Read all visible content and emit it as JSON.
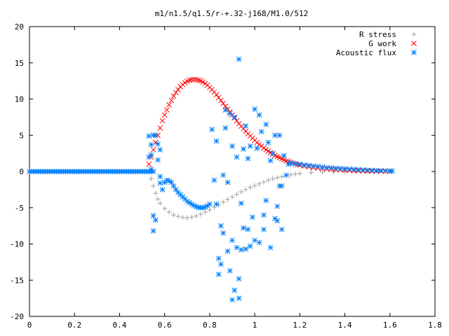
{
  "chart_data": {
    "type": "scatter",
    "title": "m1/n1.5/q1.5/r-+.32-j168/M1.0/512",
    "xlabel": "",
    "ylabel": "",
    "xlim": [
      0,
      1.8
    ],
    "ylim": [
      -20,
      20
    ],
    "x_ticks": [
      0,
      0.2,
      0.4,
      0.6,
      0.8,
      1,
      1.2,
      1.4,
      1.6,
      1.8
    ],
    "x_tick_labels": [
      "0",
      "0.2",
      "0.4",
      "0.6",
      "0.8",
      "1",
      "1.2",
      "1.4",
      "1.6",
      "1.8"
    ],
    "y_ticks": [
      -20,
      -15,
      -10,
      -5,
      0,
      5,
      10,
      15,
      20
    ],
    "y_tick_labels": [
      "-20",
      "-15",
      "-10",
      "-5",
      "0",
      "5",
      "10",
      "15",
      "20"
    ],
    "grid": false,
    "legend_position": "top-right",
    "series": [
      {
        "name": "R stress",
        "marker": "plus",
        "color": "#a0a0a0",
        "points": [
          [
            0.53,
            0
          ],
          [
            0.54,
            -1.0
          ],
          [
            0.55,
            -2.0
          ],
          [
            0.56,
            -3.0
          ],
          [
            0.57,
            -3.8
          ],
          [
            0.58,
            -4.4
          ],
          [
            0.6,
            -5.1
          ],
          [
            0.62,
            -5.6
          ],
          [
            0.64,
            -6.0
          ],
          [
            0.66,
            -6.2
          ],
          [
            0.68,
            -6.35
          ],
          [
            0.7,
            -6.4
          ],
          [
            0.72,
            -6.3
          ],
          [
            0.74,
            -6.15
          ],
          [
            0.76,
            -5.9
          ],
          [
            0.78,
            -5.6
          ],
          [
            0.8,
            -5.3
          ],
          [
            0.82,
            -4.95
          ],
          [
            0.84,
            -4.6
          ],
          [
            0.86,
            -4.2
          ],
          [
            0.88,
            -3.85
          ],
          [
            0.9,
            -3.5
          ],
          [
            0.92,
            -3.15
          ],
          [
            0.94,
            -2.8
          ],
          [
            0.96,
            -2.5
          ],
          [
            0.98,
            -2.2
          ],
          [
            1.0,
            -1.95
          ],
          [
            1.02,
            -1.7
          ],
          [
            1.04,
            -1.45
          ],
          [
            1.06,
            -1.2
          ],
          [
            1.08,
            -1.0
          ],
          [
            1.1,
            -0.85
          ],
          [
            1.12,
            -0.7
          ],
          [
            1.14,
            -0.55
          ],
          [
            1.16,
            -0.45
          ],
          [
            1.18,
            -0.35
          ],
          [
            1.2,
            -0.28
          ],
          [
            1.25,
            -0.15
          ],
          [
            1.3,
            -0.08
          ],
          [
            1.35,
            -0.04
          ],
          [
            1.4,
            -0.02
          ],
          [
            1.45,
            -0.01
          ],
          [
            1.5,
            0
          ],
          [
            1.55,
            0
          ],
          [
            1.6,
            0
          ]
        ]
      },
      {
        "name": "G work",
        "marker": "cross",
        "color": "#ff0000",
        "points": [
          [
            0.53,
            1.0
          ],
          [
            0.54,
            2.0
          ],
          [
            0.55,
            3.0
          ],
          [
            0.56,
            4.0
          ],
          [
            0.57,
            5.0
          ],
          [
            0.58,
            6.0
          ],
          [
            0.59,
            7.0
          ],
          [
            0.6,
            7.8
          ],
          [
            0.61,
            8.5
          ],
          [
            0.62,
            9.2
          ],
          [
            0.63,
            9.8
          ],
          [
            0.64,
            10.4
          ],
          [
            0.65,
            10.9
          ],
          [
            0.66,
            11.3
          ],
          [
            0.67,
            11.7
          ],
          [
            0.68,
            12.0
          ],
          [
            0.69,
            12.25
          ],
          [
            0.7,
            12.45
          ],
          [
            0.71,
            12.6
          ],
          [
            0.72,
            12.68
          ],
          [
            0.73,
            12.7
          ],
          [
            0.74,
            12.68
          ],
          [
            0.75,
            12.6
          ],
          [
            0.76,
            12.5
          ],
          [
            0.77,
            12.35
          ],
          [
            0.78,
            12.15
          ],
          [
            0.79,
            11.9
          ],
          [
            0.8,
            11.6
          ],
          [
            0.81,
            11.3
          ],
          [
            0.82,
            10.95
          ],
          [
            0.83,
            10.6
          ],
          [
            0.84,
            10.2
          ],
          [
            0.85,
            9.8
          ],
          [
            0.86,
            9.4
          ],
          [
            0.87,
            9.0
          ],
          [
            0.88,
            8.6
          ],
          [
            0.89,
            8.2
          ],
          [
            0.9,
            7.8
          ],
          [
            0.91,
            7.4
          ],
          [
            0.92,
            7.0
          ],
          [
            0.93,
            6.6
          ],
          [
            0.94,
            6.25
          ],
          [
            0.95,
            5.9
          ],
          [
            0.96,
            5.55
          ],
          [
            0.97,
            5.2
          ],
          [
            0.98,
            4.9
          ],
          [
            0.99,
            4.6
          ],
          [
            1.0,
            4.3
          ],
          [
            1.01,
            4.0
          ],
          [
            1.02,
            3.75
          ],
          [
            1.03,
            3.5
          ],
          [
            1.04,
            3.25
          ],
          [
            1.05,
            3.0
          ],
          [
            1.06,
            2.8
          ],
          [
            1.07,
            2.6
          ],
          [
            1.08,
            2.4
          ],
          [
            1.09,
            2.2
          ],
          [
            1.1,
            2.05
          ],
          [
            1.11,
            1.9
          ],
          [
            1.12,
            1.75
          ],
          [
            1.13,
            1.6
          ],
          [
            1.14,
            1.45
          ],
          [
            1.15,
            1.35
          ],
          [
            1.16,
            1.25
          ],
          [
            1.17,
            1.15
          ],
          [
            1.18,
            1.05
          ],
          [
            1.19,
            0.95
          ],
          [
            1.2,
            0.88
          ],
          [
            1.22,
            0.75
          ],
          [
            1.24,
            0.65
          ],
          [
            1.26,
            0.55
          ],
          [
            1.28,
            0.47
          ],
          [
            1.3,
            0.4
          ],
          [
            1.32,
            0.34
          ],
          [
            1.34,
            0.29
          ],
          [
            1.36,
            0.25
          ],
          [
            1.38,
            0.21
          ],
          [
            1.4,
            0.18
          ],
          [
            1.42,
            0.15
          ],
          [
            1.44,
            0.12
          ],
          [
            1.46,
            0.1
          ],
          [
            1.48,
            0.08
          ],
          [
            1.5,
            0.06
          ],
          [
            1.52,
            0.05
          ],
          [
            1.54,
            0.04
          ],
          [
            1.56,
            0.03
          ],
          [
            1.58,
            0.02
          ],
          [
            1.6,
            0.01
          ]
        ]
      },
      {
        "name": "Acoustic flux",
        "marker": "star",
        "color": "#0080ff",
        "points": [
          [
            0.0,
            0
          ],
          [
            0.04,
            0
          ],
          [
            0.08,
            0
          ],
          [
            0.12,
            0
          ],
          [
            0.16,
            0
          ],
          [
            0.2,
            0
          ],
          [
            0.24,
            0
          ],
          [
            0.28,
            0
          ],
          [
            0.32,
            0
          ],
          [
            0.36,
            0
          ],
          [
            0.4,
            0
          ],
          [
            0.44,
            0
          ],
          [
            0.48,
            0
          ],
          [
            0.52,
            0
          ],
          [
            0.53,
            2.0
          ],
          [
            0.53,
            4.9
          ],
          [
            0.54,
            3.7
          ],
          [
            0.54,
            2.3
          ],
          [
            0.54,
            0.3
          ],
          [
            0.55,
            5.0
          ],
          [
            0.55,
            -6.1
          ],
          [
            0.55,
            -8.2
          ],
          [
            0.56,
            -6.7
          ],
          [
            0.56,
            5.0
          ],
          [
            0.57,
            3.8
          ],
          [
            0.57,
            1.6
          ],
          [
            0.58,
            3.0
          ],
          [
            0.58,
            -0.7
          ],
          [
            0.58,
            -1.6
          ],
          [
            0.59,
            -2.5
          ],
          [
            0.6,
            -1.5
          ],
          [
            0.61,
            -1.2
          ],
          [
            0.62,
            -1.3
          ],
          [
            0.63,
            -1.5
          ],
          [
            0.64,
            -2.0
          ],
          [
            0.65,
            -2.5
          ],
          [
            0.66,
            -2.9
          ],
          [
            0.67,
            -3.2
          ],
          [
            0.68,
            -3.5
          ],
          [
            0.69,
            -3.8
          ],
          [
            0.7,
            -4.1
          ],
          [
            0.71,
            -4.3
          ],
          [
            0.72,
            -4.5
          ],
          [
            0.73,
            -4.7
          ],
          [
            0.74,
            -4.85
          ],
          [
            0.75,
            -4.95
          ],
          [
            0.76,
            -5.0
          ],
          [
            0.77,
            -5.0
          ],
          [
            0.78,
            -4.9
          ],
          [
            0.79,
            -4.75
          ],
          [
            0.8,
            -4.5
          ],
          [
            0.81,
            5.8
          ],
          [
            0.82,
            -1.2
          ],
          [
            0.83,
            -4.5
          ],
          [
            0.83,
            4.2
          ],
          [
            0.84,
            -12.0
          ],
          [
            0.84,
            -14.2
          ],
          [
            0.85,
            -7.5
          ],
          [
            0.85,
            -12.8
          ],
          [
            0.86,
            -8.5
          ],
          [
            0.86,
            -0.5
          ],
          [
            0.87,
            8.5
          ],
          [
            0.87,
            6.0
          ],
          [
            0.88,
            -11.0
          ],
          [
            0.88,
            -1.5
          ],
          [
            0.89,
            -13.7
          ],
          [
            0.89,
            8.0
          ],
          [
            0.9,
            -9.5
          ],
          [
            0.9,
            -17.7
          ],
          [
            0.9,
            3.5
          ],
          [
            0.91,
            -16.4
          ],
          [
            0.91,
            7.5
          ],
          [
            0.92,
            -10.5
          ],
          [
            0.92,
            2.0
          ],
          [
            0.93,
            15.5
          ],
          [
            0.93,
            -17.5
          ],
          [
            0.93,
            -14.8
          ],
          [
            0.94,
            -10.8
          ],
          [
            0.94,
            -4.4
          ],
          [
            0.95,
            -7.8
          ],
          [
            0.95,
            3.1
          ],
          [
            0.96,
            -10.7
          ],
          [
            0.96,
            6.3
          ],
          [
            0.97,
            1.8
          ],
          [
            0.97,
            -8.0
          ],
          [
            0.98,
            -10.3
          ],
          [
            0.98,
            3.5
          ],
          [
            0.99,
            -6.3
          ],
          [
            1.0,
            8.6
          ],
          [
            1.0,
            -9.5
          ],
          [
            1.01,
            3.2
          ],
          [
            1.02,
            7.8
          ],
          [
            1.02,
            -9.8
          ],
          [
            1.03,
            5.5
          ],
          [
            1.04,
            -8.0
          ],
          [
            1.04,
            -6.0
          ],
          [
            1.05,
            -4.0
          ],
          [
            1.05,
            6.5
          ],
          [
            1.06,
            4.0
          ],
          [
            1.07,
            -10.5
          ],
          [
            1.07,
            1.5
          ],
          [
            1.08,
            2.5
          ],
          [
            1.09,
            -6.5
          ],
          [
            1.09,
            5.0
          ],
          [
            1.1,
            -6.8
          ],
          [
            1.1,
            -4.8
          ],
          [
            1.11,
            -2.0
          ],
          [
            1.11,
            5.0
          ],
          [
            1.12,
            -8.0
          ],
          [
            1.12,
            -2.0
          ],
          [
            1.13,
            2.2
          ],
          [
            1.14,
            -0.5
          ],
          [
            1.15,
            1.0
          ],
          [
            1.16,
            1.2
          ],
          [
            1.18,
            1.1
          ],
          [
            1.2,
            1.0
          ],
          [
            1.22,
            0.9
          ],
          [
            1.24,
            0.85
          ],
          [
            1.26,
            0.75
          ],
          [
            1.28,
            0.7
          ],
          [
            1.3,
            0.62
          ],
          [
            1.32,
            0.55
          ],
          [
            1.34,
            0.5
          ],
          [
            1.36,
            0.45
          ],
          [
            1.38,
            0.42
          ],
          [
            1.4,
            0.38
          ],
          [
            1.42,
            0.33
          ],
          [
            1.44,
            0.3
          ],
          [
            1.46,
            0.26
          ],
          [
            1.48,
            0.22
          ],
          [
            1.5,
            0.2
          ],
          [
            1.52,
            0.17
          ],
          [
            1.54,
            0.14
          ],
          [
            1.56,
            0.12
          ],
          [
            1.58,
            0.1
          ],
          [
            1.6,
            0.08
          ],
          [
            1.61,
            0.07
          ]
        ]
      }
    ]
  }
}
